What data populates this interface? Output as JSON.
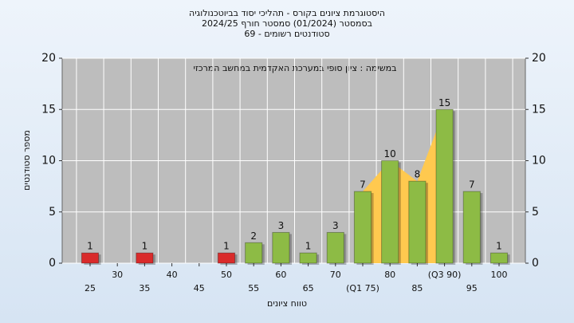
{
  "chart_data": {
    "type": "bar",
    "title": "היסטוגרמת ציונים בקורס - תהליכי יסוד בביוטכנולוגיה",
    "subtitle": [
      "בסמסטר  (01/2024)  סמסטר חורף 2024/25",
      "סטודנטים רשומים - 69"
    ],
    "annotation": "במשימה : ציון סופי במערכת האקדמית במחשב המרכזי",
    "x_label": "טווח ציונים",
    "y_label": "מספר סטודנטים",
    "categories": [
      "25",
      "30",
      "35",
      "40",
      "45",
      "50",
      "55",
      "60",
      "65",
      "70",
      "(Q1 75)",
      "80",
      "85",
      "(Q3 90)",
      "95",
      "100"
    ],
    "values": [
      1,
      0,
      1,
      0,
      0,
      1,
      2,
      3,
      1,
      3,
      7,
      10,
      8,
      15,
      7,
      1
    ],
    "colors": [
      "#d92b2b",
      "#d92b2b",
      "#d92b2b",
      "#d92b2b",
      "#d92b2b",
      "#d92b2b",
      "#8dbb45",
      "#8dbb45",
      "#8dbb45",
      "#8dbb45",
      "#8dbb45",
      "#8dbb45",
      "#8dbb45",
      "#8dbb45",
      "#8dbb45",
      "#8dbb45"
    ],
    "iqr_color": "#ffc94f",
    "ylim": [
      0,
      20
    ],
    "yticks": [
      0,
      5,
      10,
      15,
      20
    ],
    "grid": true
  }
}
